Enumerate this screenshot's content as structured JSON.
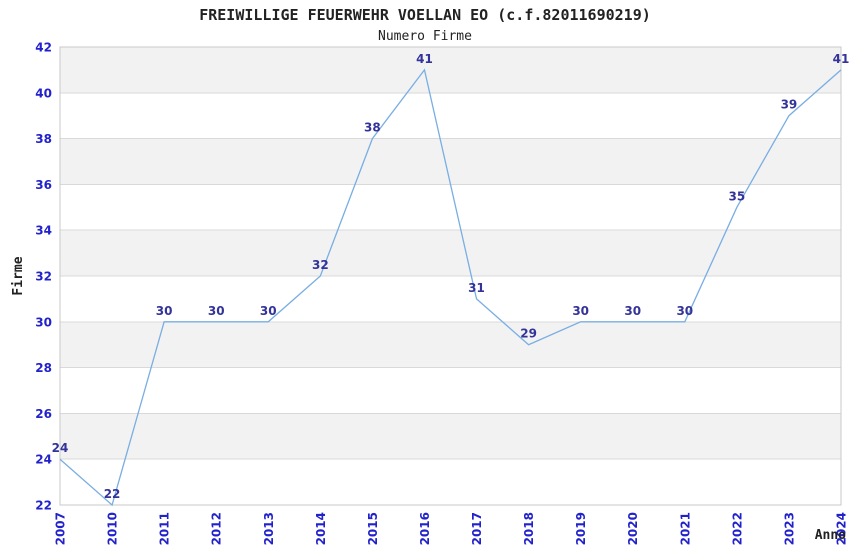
{
  "chart_data": {
    "type": "line",
    "title": "FREIWILLIGE FEUERWEHR VOELLAN EO (c.f.82011690219)",
    "subtitle": "Numero Firme",
    "xlabel": "Anno",
    "ylabel": "Firme",
    "categories": [
      "2007",
      "2010",
      "2011",
      "2012",
      "2013",
      "2014",
      "2015",
      "2016",
      "2017",
      "2018",
      "2019",
      "2020",
      "2021",
      "2022",
      "2023",
      "2024"
    ],
    "values": [
      24,
      22,
      30,
      30,
      30,
      32,
      38,
      41,
      31,
      29,
      30,
      30,
      30,
      35,
      39,
      41
    ],
    "ylim": [
      22,
      42
    ],
    "ytick_step": 2,
    "grid": "horizontal-gridlines-with-alternating-bands",
    "legend": "none",
    "x_labels_rotated_degrees": 90,
    "colors": {
      "line": "#79aee3",
      "data_label": "#333399",
      "tick_label": "#2222cc",
      "title": "#222222",
      "band": "#f2f2f2",
      "gridline": "#d9d9d9",
      "border": "#c9c9c9",
      "background": "#ffffff"
    }
  }
}
